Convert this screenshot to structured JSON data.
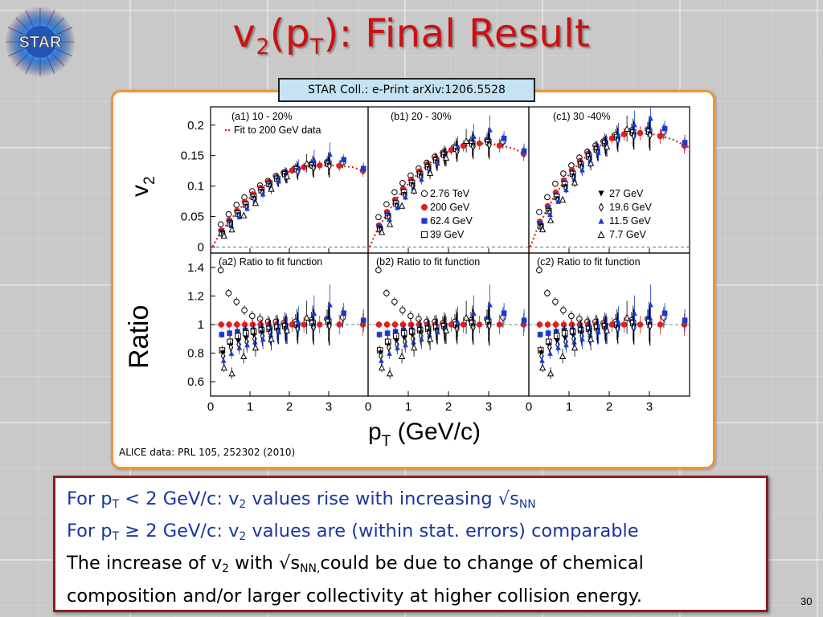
{
  "slide": {
    "title_main": "v",
    "title_sub1": "2",
    "title_mid": "(p",
    "title_sub2": "T",
    "title_end": "): Final Result",
    "logo_text": "STAR",
    "citation": "STAR Coll.: e-Print arXiv:1206.5528",
    "alice_note": "ALICE data: PRL 105, 252302 (2010)",
    "page_number": "30"
  },
  "summary": {
    "line1": {
      "a": "For p",
      "b": "T",
      "c": " < 2 GeV/c:  v",
      "d": "2",
      "e": " values rise with increasing √s",
      "f": "NN"
    },
    "line2": {
      "a": "For p",
      "b": "T",
      "c": " ≥ 2 GeV/c:  v",
      "d": "2",
      "e": " values are (within stat. errors) comparable"
    },
    "line3": {
      "a": "The increase of v",
      "b": "2",
      "c": " with √s",
      "d": "NN,",
      "e": "could be due to change of chemical"
    },
    "line4": "composition  and/or larger collectivity at higher collision energy."
  },
  "colors": {
    "title": "#cc1010",
    "summary_blue": "#1a36a0",
    "frame": "#f0943a",
    "citation_bg": "#c6e3f3",
    "s200": "#e02020",
    "s62": "#1a3ad0",
    "fit": "#e02020"
  },
  "chart_data": {
    "type": "scatter",
    "xlabel": "p",
    "xlabel_sub": "T",
    "xlabel_unit": " (GeV/c)",
    "ylabel_top": "v",
    "ylabel_top_sub": "2",
    "ylabel_bottom": "Ratio",
    "xlim": [
      0,
      4
    ],
    "ylim_top": [
      -0.01,
      0.23
    ],
    "ylim_bottom": [
      0.5,
      1.5
    ],
    "x_ticks": [
      0,
      1,
      2,
      3
    ],
    "y_ticks_top": [
      0,
      0.05,
      0.1,
      0.15,
      0.2
    ],
    "y_ticks_bottom": [
      0.6,
      0.8,
      1,
      1.2,
      1.4
    ],
    "panel_titles_top": [
      "(a1) 10 - 20%",
      "(b1) 20 - 30%",
      "(c1) 30 -40%"
    ],
    "panel_titles_bottom": [
      "(a2) Ratio to fit function",
      "(b2) Ratio to fit function",
      "(c2) Ratio to fit function"
    ],
    "fit_label": "Fit to 200 GeV data",
    "legend_left": [
      "2.76 TeV",
      "200 GeV",
      "62.4 GeV",
      "39 GeV"
    ],
    "legend_right": [
      "27 GeV",
      "19.6 GeV",
      "11.5 GeV",
      "7.7 GeV"
    ],
    "fit_curves": [
      {
        "x": [
          0.0,
          0.2,
          0.4,
          0.6,
          0.8,
          1.0,
          1.3,
          1.6,
          2.0,
          2.4,
          2.8,
          3.2,
          3.6,
          4.0
        ],
        "y": [
          -0.005,
          0.018,
          0.036,
          0.052,
          0.067,
          0.081,
          0.097,
          0.111,
          0.124,
          0.131,
          0.134,
          0.134,
          0.131,
          0.123
        ]
      },
      {
        "x": [
          0.0,
          0.2,
          0.4,
          0.6,
          0.8,
          1.0,
          1.3,
          1.6,
          2.0,
          2.4,
          2.8,
          3.2,
          3.6,
          4.0
        ],
        "y": [
          -0.006,
          0.024,
          0.047,
          0.068,
          0.087,
          0.104,
          0.124,
          0.141,
          0.157,
          0.166,
          0.17,
          0.168,
          0.162,
          0.15
        ]
      },
      {
        "x": [
          0.0,
          0.2,
          0.4,
          0.6,
          0.8,
          1.0,
          1.3,
          1.6,
          2.0,
          2.4,
          2.8,
          3.2,
          3.6,
          4.0
        ],
        "y": [
          -0.006,
          0.028,
          0.055,
          0.079,
          0.1,
          0.119,
          0.141,
          0.159,
          0.176,
          0.185,
          0.187,
          0.184,
          0.176,
          0.163
        ]
      }
    ],
    "series_points": [
      {
        "name": "2.76 TeV",
        "panel_y_offset": [
          0.003,
          0.005,
          0.006
        ],
        "x": [
          0.3,
          0.5,
          0.7,
          0.9,
          1.1,
          1.3,
          1.5,
          1.7,
          1.9,
          2.2,
          2.6,
          3.0,
          3.4
        ],
        "ratio": [
          1.38,
          1.22,
          1.16,
          1.1,
          1.06,
          1.04,
          1.02,
          1.02,
          1.01,
          1.02,
          1.03,
          1.04,
          1.05
        ]
      },
      {
        "name": "200 GeV",
        "x": [
          0.3,
          0.5,
          0.7,
          0.9,
          1.1,
          1.3,
          1.5,
          1.7,
          1.9,
          2.1,
          2.4,
          2.8,
          3.3,
          3.9
        ],
        "ratio": [
          1,
          1,
          1,
          1,
          1,
          1,
          1,
          1,
          1,
          1,
          1,
          1,
          1,
          1
        ]
      },
      {
        "name": "62.4 GeV",
        "x": [
          0.3,
          0.5,
          0.7,
          0.9,
          1.1,
          1.3,
          1.5,
          1.7,
          1.9,
          2.2,
          2.6,
          3.0,
          3.4,
          3.9
        ],
        "ratio": [
          0.93,
          0.94,
          0.95,
          0.96,
          0.96,
          0.97,
          0.98,
          0.98,
          0.99,
          1.0,
          1.02,
          1.04,
          1.08,
          1.03
        ]
      },
      {
        "name": "39 GeV",
        "x": [
          0.3,
          0.5,
          0.7,
          0.9,
          1.1,
          1.3,
          1.5,
          1.7,
          1.9,
          2.2,
          2.6,
          3.0
        ],
        "ratio": [
          0.82,
          0.88,
          0.92,
          0.94,
          0.95,
          0.96,
          0.97,
          0.98,
          0.99,
          1.0,
          1.01,
          1.02
        ]
      },
      {
        "name": "27 GeV",
        "x": [
          0.3,
          0.5,
          0.7,
          0.9,
          1.1,
          1.3,
          1.5,
          1.7,
          1.9,
          2.2,
          2.6,
          3.0
        ],
        "ratio": [
          0.8,
          0.85,
          0.88,
          0.9,
          0.92,
          0.94,
          0.95,
          0.96,
          0.97,
          0.98,
          0.99,
          1.0
        ]
      },
      {
        "name": "19.6 GeV",
        "x": [
          0.3,
          0.5,
          0.7,
          0.9,
          1.1,
          1.3,
          1.5,
          1.7,
          1.9,
          2.2,
          2.6,
          3.0
        ],
        "ratio": [
          0.78,
          0.84,
          0.86,
          0.88,
          0.9,
          0.92,
          0.94,
          0.95,
          0.96,
          0.97,
          0.98,
          0.99
        ]
      },
      {
        "name": "11.5 GeV",
        "x": [
          0.3,
          0.5,
          0.7,
          0.9,
          1.1,
          1.3,
          1.5,
          1.7,
          1.9,
          2.2,
          2.6,
          3.0
        ],
        "ratio": [
          0.75,
          0.8,
          0.84,
          0.86,
          0.88,
          0.9,
          0.93,
          0.95,
          0.98,
          1.02,
          1.08,
          1.14
        ]
      },
      {
        "name": "7.7 GeV",
        "x": [
          0.3,
          0.5,
          0.8,
          1.1,
          1.5,
          1.9,
          2.4
        ],
        "ratio": [
          0.7,
          0.66,
          0.78,
          0.84,
          0.9,
          0.96,
          1.05
        ]
      }
    ]
  }
}
